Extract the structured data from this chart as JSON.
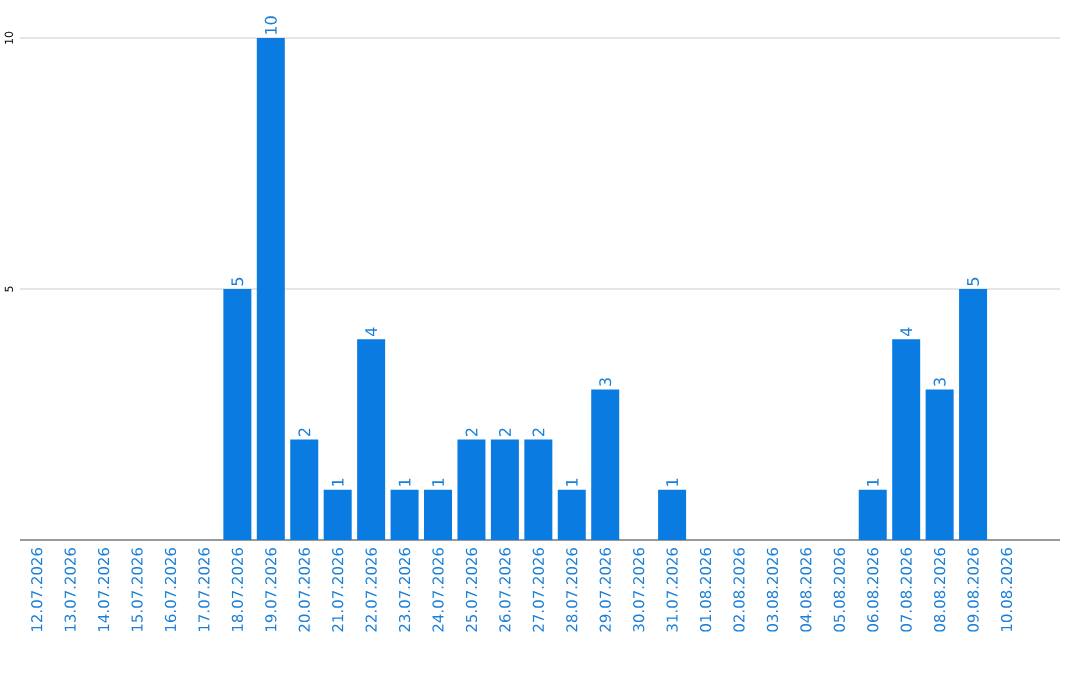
{
  "chart_data": {
    "type": "bar",
    "categories": [
      "12.07.2026",
      "13.07.2026",
      "14.07.2026",
      "15.07.2026",
      "16.07.2026",
      "17.07.2026",
      "18.07.2026",
      "19.07.2026",
      "20.07.2026",
      "21.07.2026",
      "22.07.2026",
      "23.07.2026",
      "24.07.2026",
      "25.07.2026",
      "26.07.2026",
      "27.07.2026",
      "28.07.2026",
      "29.07.2026",
      "30.07.2026",
      "31.07.2026",
      "01.08.2026",
      "02.08.2026",
      "03.08.2026",
      "04.08.2026",
      "05.08.2026",
      "06.08.2026",
      "07.08.2026",
      "08.08.2026",
      "09.08.2026",
      "10.08.2026"
    ],
    "values": [
      0,
      0,
      0,
      0,
      0,
      0,
      5,
      10,
      2,
      1,
      4,
      1,
      1,
      2,
      2,
      2,
      1,
      3,
      0,
      1,
      0,
      0,
      0,
      0,
      0,
      1,
      4,
      3,
      5,
      0
    ],
    "value_labels": [
      null,
      null,
      null,
      null,
      null,
      null,
      "5",
      "10",
      "2",
      "1",
      "4",
      "1",
      "1",
      "2",
      "2",
      "2",
      "1",
      "3",
      null,
      "1",
      null,
      null,
      null,
      null,
      null,
      "1",
      "4",
      "3",
      "5",
      null
    ],
    "color": "#0a7be0",
    "ylim": [
      0,
      10
    ],
    "yticks": [
      5,
      10
    ],
    "grid": "y"
  }
}
